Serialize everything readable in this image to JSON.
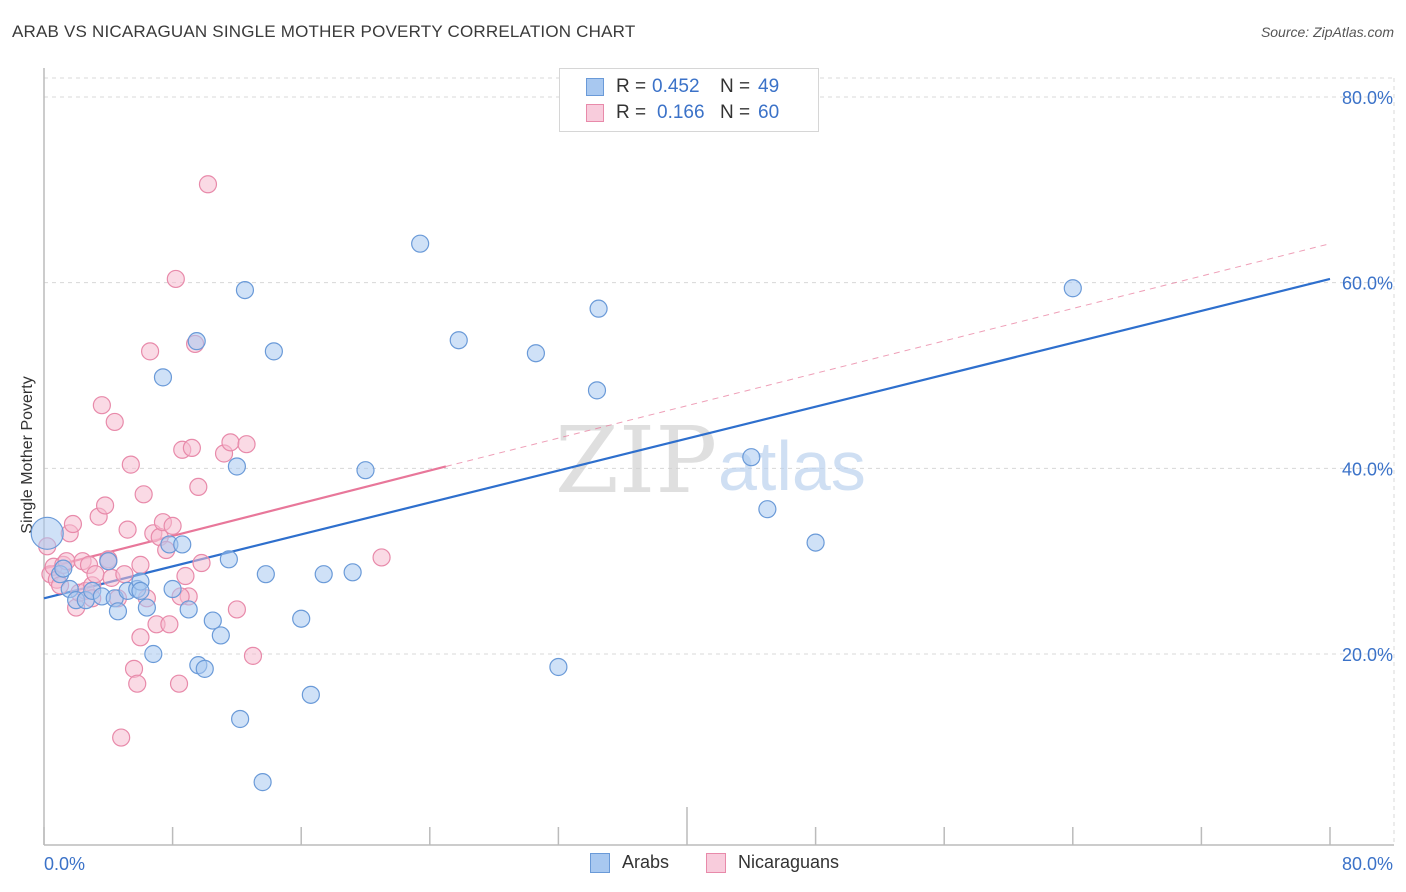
{
  "header": {
    "title": "ARAB VS NICARAGUAN SINGLE MOTHER POVERTY CORRELATION CHART",
    "source": "Source: ZipAtlas.com"
  },
  "legend": {
    "rows": [
      {
        "r_label": "R =",
        "r_value": "0.452",
        "n_label": "N =",
        "n_value": "49"
      },
      {
        "r_label": "R =",
        "r_value": "0.166",
        "n_label": "N =",
        "n_value": "60"
      }
    ],
    "bottom": [
      "Arabs",
      "Nicaraguans"
    ]
  },
  "watermark": {
    "zip": "ZIP",
    "atlas": "atlas"
  },
  "colors": {
    "arab_fill": "#a8c8f0",
    "arab_stroke": "#6a9ad8",
    "arab_line": "#2e6fcd",
    "nica_fill": "#f5bcd0",
    "nica_stroke": "#e88aaa",
    "nica_line": "#e8779a",
    "tick_label": "#3b72c8",
    "grid": "#d8d8d8"
  },
  "chart_data": {
    "type": "scatter",
    "title": "ARAB VS NICARAGUAN SINGLE MOTHER POVERTY CORRELATION CHART",
    "xlabel": "",
    "ylabel": "Single Mother Poverty",
    "xlim": [
      0,
      0.84
    ],
    "ylim": [
      0,
      0.82
    ],
    "x_tick_labels": [
      "0.0%",
      "80.0%"
    ],
    "y_ticks": [
      0.2,
      0.4,
      0.6,
      0.8
    ],
    "y_tick_labels": [
      "20.0%",
      "40.0%",
      "60.0%",
      "80.0%"
    ],
    "series": [
      {
        "name": "Arabs",
        "r": 0.452,
        "n": 49,
        "trend": {
          "x0": 0,
          "y0": 0.26,
          "x1": 0.8,
          "y1": 0.604
        },
        "points": [
          [
            0.002,
            0.33
          ],
          [
            0.01,
            0.286
          ],
          [
            0.012,
            0.292
          ],
          [
            0.016,
            0.27
          ],
          [
            0.02,
            0.258
          ],
          [
            0.026,
            0.258
          ],
          [
            0.03,
            0.268
          ],
          [
            0.036,
            0.262
          ],
          [
            0.04,
            0.3
          ],
          [
            0.044,
            0.26
          ],
          [
            0.046,
            0.246
          ],
          [
            0.052,
            0.268
          ],
          [
            0.058,
            0.27
          ],
          [
            0.06,
            0.278
          ],
          [
            0.064,
            0.25
          ],
          [
            0.068,
            0.2
          ],
          [
            0.074,
            0.498
          ],
          [
            0.078,
            0.318
          ],
          [
            0.08,
            0.27
          ],
          [
            0.086,
            0.318
          ],
          [
            0.09,
            0.248
          ],
          [
            0.095,
            0.537
          ],
          [
            0.096,
            0.188
          ],
          [
            0.1,
            0.184
          ],
          [
            0.105,
            0.236
          ],
          [
            0.11,
            0.22
          ],
          [
            0.115,
            0.302
          ],
          [
            0.12,
            0.402
          ],
          [
            0.122,
            0.13
          ],
          [
            0.125,
            0.592
          ],
          [
            0.136,
            0.062
          ],
          [
            0.138,
            0.286
          ],
          [
            0.143,
            0.526
          ],
          [
            0.16,
            0.238
          ],
          [
            0.166,
            0.156
          ],
          [
            0.174,
            0.286
          ],
          [
            0.192,
            0.288
          ],
          [
            0.2,
            0.398
          ],
          [
            0.234,
            0.642
          ],
          [
            0.258,
            0.538
          ],
          [
            0.306,
            0.524
          ],
          [
            0.32,
            0.186
          ],
          [
            0.344,
            0.484
          ],
          [
            0.345,
            0.572
          ],
          [
            0.44,
            0.412
          ],
          [
            0.45,
            0.356
          ],
          [
            0.48,
            0.32
          ],
          [
            0.64,
            0.594
          ],
          [
            0.06,
            0.268
          ]
        ]
      },
      {
        "name": "Nicaraguans",
        "r": 0.166,
        "n": 60,
        "trend": {
          "x0": 0,
          "y0": 0.292,
          "x1": 0.25,
          "y1": 0.402,
          "dash_x1": 0.8,
          "dash_y1": 0.642
        },
        "points": [
          [
            0.002,
            0.316
          ],
          [
            0.004,
            0.286
          ],
          [
            0.006,
            0.294
          ],
          [
            0.008,
            0.28
          ],
          [
            0.01,
            0.274
          ],
          [
            0.012,
            0.296
          ],
          [
            0.014,
            0.3
          ],
          [
            0.016,
            0.33
          ],
          [
            0.018,
            0.34
          ],
          [
            0.02,
            0.25
          ],
          [
            0.022,
            0.266
          ],
          [
            0.024,
            0.3
          ],
          [
            0.026,
            0.268
          ],
          [
            0.028,
            0.296
          ],
          [
            0.03,
            0.274
          ],
          [
            0.032,
            0.286
          ],
          [
            0.034,
            0.348
          ],
          [
            0.036,
            0.468
          ],
          [
            0.038,
            0.36
          ],
          [
            0.04,
            0.302
          ],
          [
            0.042,
            0.282
          ],
          [
            0.044,
            0.45
          ],
          [
            0.046,
            0.26
          ],
          [
            0.048,
            0.11
          ],
          [
            0.05,
            0.286
          ],
          [
            0.052,
            0.334
          ],
          [
            0.054,
            0.404
          ],
          [
            0.056,
            0.184
          ],
          [
            0.058,
            0.168
          ],
          [
            0.06,
            0.218
          ],
          [
            0.062,
            0.372
          ],
          [
            0.064,
            0.26
          ],
          [
            0.066,
            0.526
          ],
          [
            0.068,
            0.33
          ],
          [
            0.07,
            0.232
          ],
          [
            0.072,
            0.326
          ],
          [
            0.074,
            0.342
          ],
          [
            0.076,
            0.312
          ],
          [
            0.078,
            0.232
          ],
          [
            0.08,
            0.338
          ],
          [
            0.082,
            0.604
          ],
          [
            0.084,
            0.168
          ],
          [
            0.086,
            0.42
          ],
          [
            0.088,
            0.284
          ],
          [
            0.09,
            0.262
          ],
          [
            0.092,
            0.422
          ],
          [
            0.094,
            0.534
          ],
          [
            0.096,
            0.38
          ],
          [
            0.098,
            0.298
          ],
          [
            0.102,
            0.706
          ],
          [
            0.112,
            0.416
          ],
          [
            0.116,
            0.428
          ],
          [
            0.12,
            0.248
          ],
          [
            0.126,
            0.426
          ],
          [
            0.13,
            0.198
          ],
          [
            0.21,
            0.304
          ],
          [
            0.03,
            0.26
          ],
          [
            0.06,
            0.296
          ],
          [
            0.04,
            0.3
          ],
          [
            0.085,
            0.262
          ]
        ]
      }
    ]
  }
}
